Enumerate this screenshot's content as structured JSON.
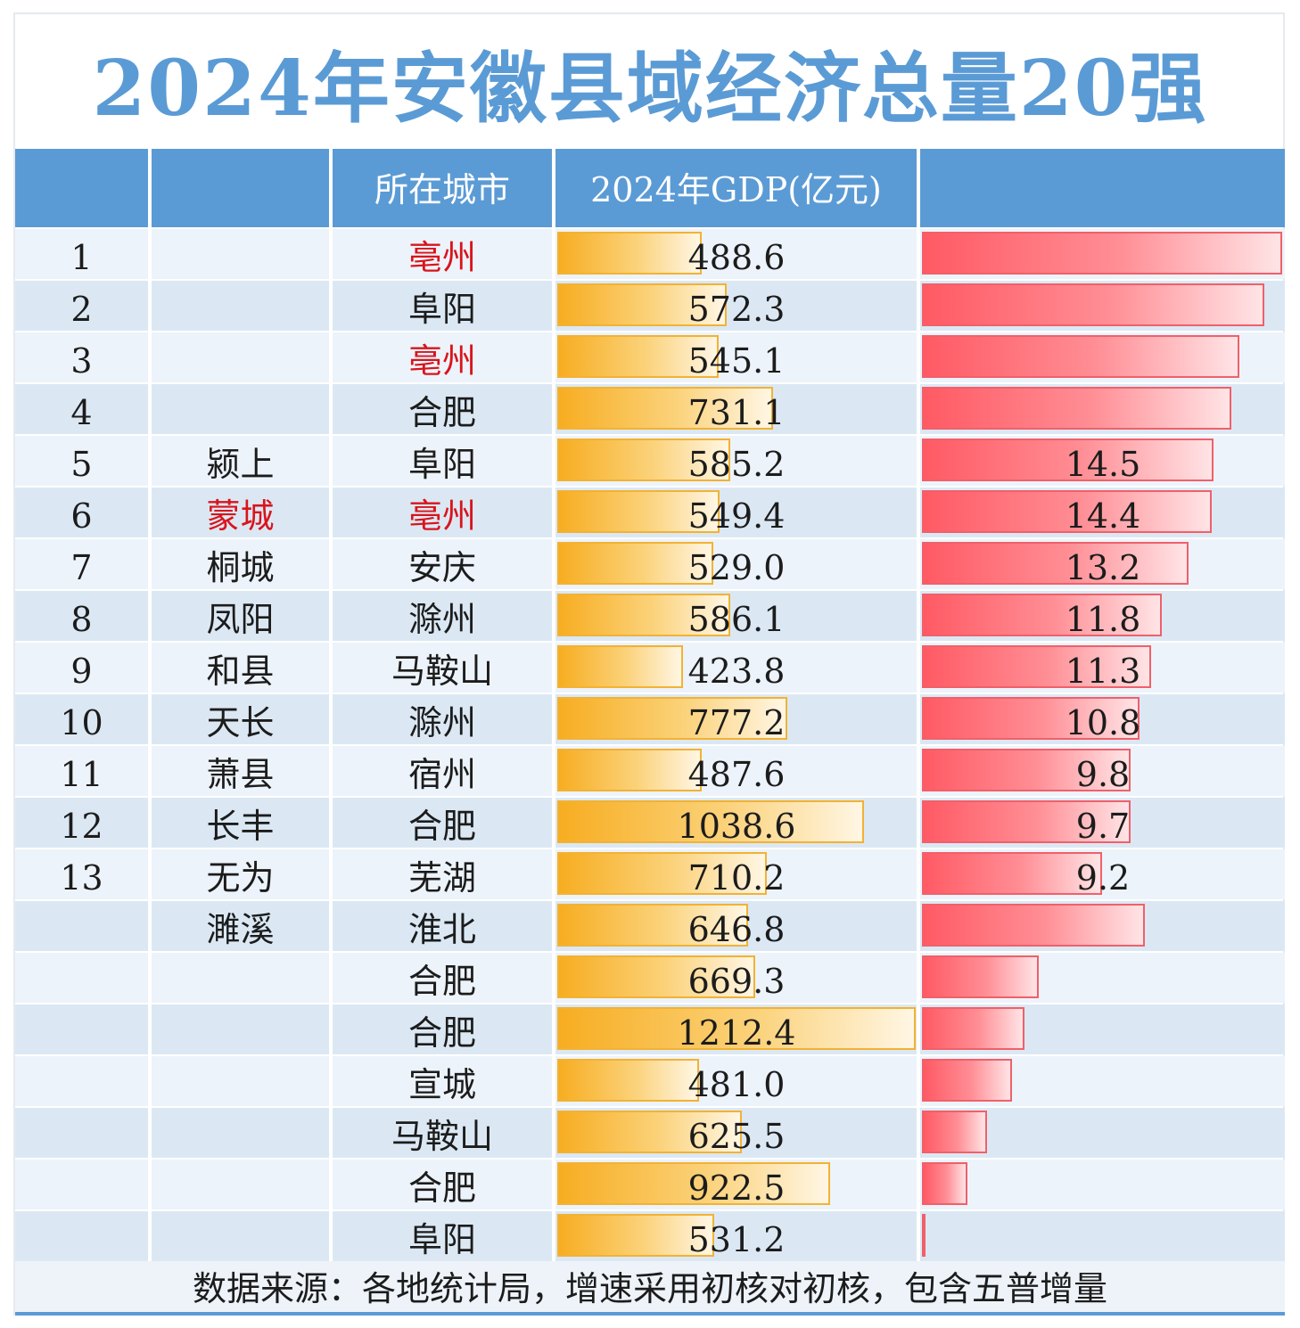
{
  "title": "2024年安徽县域经济总量20强",
  "header": {
    "rank": "",
    "county": "",
    "city": "所在城市",
    "gdp": "2024年GDP(亿元)",
    "growth": ""
  },
  "colors": {
    "header_bg": "#5b9bd5",
    "title": "#5b9bd5",
    "gdp_bar": "#f7ad21",
    "growth_bar": "#ff5a64",
    "highlight_text": "#d9141c",
    "row_even": "#dbe8f4",
    "row_odd": "#edf3fa"
  },
  "chart_data": {
    "type": "table",
    "columns": [
      "",
      "",
      "所在城市",
      "2024年GDP(亿元)",
      ""
    ],
    "rows": [
      {
        "rank": "1",
        "county": "",
        "city": "亳州",
        "gdp": "488.6",
        "growth": "",
        "city_red": true,
        "county_red": false
      },
      {
        "rank": "2",
        "county": "",
        "city": "阜阳",
        "gdp": "572.3",
        "growth": "",
        "city_red": false,
        "county_red": false
      },
      {
        "rank": "3",
        "county": "",
        "city": "亳州",
        "gdp": "545.1",
        "growth": "",
        "city_red": true,
        "county_red": false
      },
      {
        "rank": "4",
        "county": "",
        "city": "合肥",
        "gdp": "731.1",
        "growth": "",
        "city_red": false,
        "county_red": false
      },
      {
        "rank": "5",
        "county": "颍上",
        "city": "阜阳",
        "gdp": "585.2",
        "growth": "14.5",
        "city_red": false,
        "county_red": false
      },
      {
        "rank": "6",
        "county": "蒙城",
        "city": "亳州",
        "gdp": "549.4",
        "growth": "14.4",
        "city_red": true,
        "county_red": true
      },
      {
        "rank": "7",
        "county": "桐城",
        "city": "安庆",
        "gdp": "529.0",
        "growth": "13.2",
        "city_red": false,
        "county_red": false
      },
      {
        "rank": "8",
        "county": "凤阳",
        "city": "滁州",
        "gdp": "586.1",
        "growth": "11.8",
        "city_red": false,
        "county_red": false
      },
      {
        "rank": "9",
        "county": "和县",
        "city": "马鞍山",
        "gdp": "423.8",
        "growth": "11.3",
        "city_red": false,
        "county_red": false
      },
      {
        "rank": "10",
        "county": "天长",
        "city": "滁州",
        "gdp": "777.2",
        "growth": "10.8",
        "city_red": false,
        "county_red": false
      },
      {
        "rank": "11",
        "county": "萧县",
        "city": "宿州",
        "gdp": "487.6",
        "growth": "9.8",
        "city_red": false,
        "county_red": false
      },
      {
        "rank": "12",
        "county": "长丰",
        "city": "合肥",
        "gdp": "1038.6",
        "growth": "9.7",
        "city_red": false,
        "county_red": false
      },
      {
        "rank": "13",
        "county": "无为",
        "city": "芜湖",
        "gdp": "710.2",
        "growth": "9.2",
        "city_red": false,
        "county_red": false
      },
      {
        "rank": "",
        "county": "濉溪",
        "city": "淮北",
        "gdp": "646.8",
        "growth": "",
        "city_red": false,
        "county_red": false
      },
      {
        "rank": "",
        "county": "",
        "city": "合肥",
        "gdp": "669.3",
        "growth": "",
        "city_red": false,
        "county_red": false
      },
      {
        "rank": "",
        "county": "",
        "city": "合肥",
        "gdp": "1212.4",
        "growth": "",
        "city_red": false,
        "county_red": false
      },
      {
        "rank": "",
        "county": "",
        "city": "宣城",
        "gdp": "481.0",
        "growth": "",
        "city_red": false,
        "county_red": false
      },
      {
        "rank": "",
        "county": "",
        "city": "马鞍山",
        "gdp": "625.5",
        "growth": "",
        "city_red": false,
        "county_red": false
      },
      {
        "rank": "",
        "county": "",
        "city": "合肥",
        "gdp": "922.5",
        "growth": "",
        "city_red": false,
        "county_red": false
      },
      {
        "rank": "",
        "county": "",
        "city": "阜阳",
        "gdp": "531.2",
        "growth": "",
        "city_red": false,
        "county_red": false
      }
    ],
    "gdp_bar_max": 1212.4,
    "growth_bar_levels": [
      1.0,
      0.95,
      0.88,
      0.86,
      0.81,
      0.805,
      0.74,
      0.665,
      0.635,
      0.605,
      0.58,
      0.58,
      0.5,
      0.62,
      0.325,
      0.285,
      0.25,
      0.18,
      0.125,
      0.005
    ]
  },
  "footer": "数据来源：各地统计局，增速采用初核对初核，包含五普增量"
}
